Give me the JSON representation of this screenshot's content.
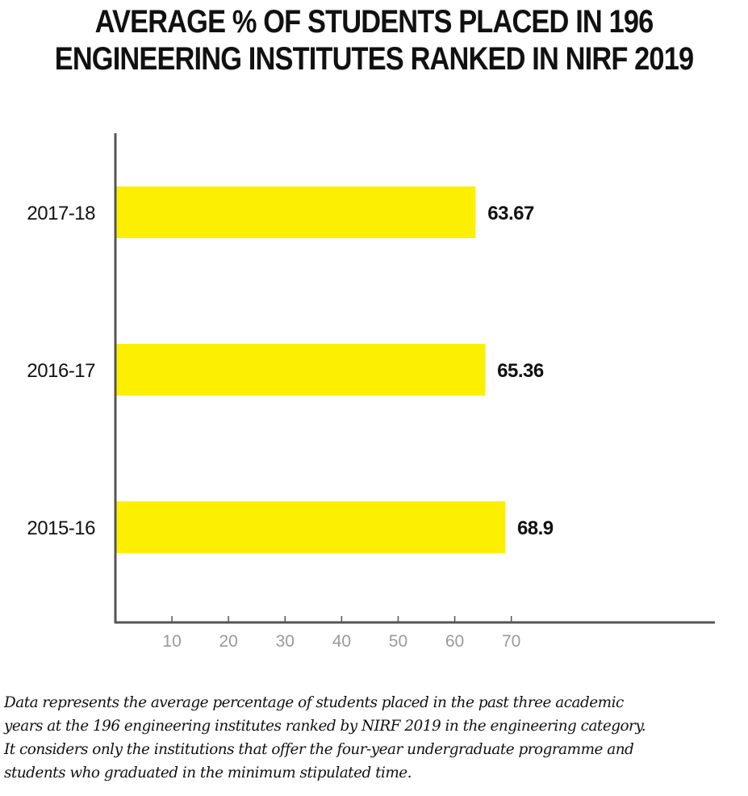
{
  "title": {
    "line1": "AVERAGE % OF STUDENTS PLACED IN 196",
    "line2": "ENGINEERING INSTITUTES RANKED IN NIRF 2019"
  },
  "chart_data": {
    "type": "bar",
    "orientation": "horizontal",
    "title": "AVERAGE % OF STUDENTS PLACED IN 196 ENGINEERING INSTITUTES RANKED IN NIRF 2019",
    "categories": [
      "2017-18",
      "2016-17",
      "2015-16"
    ],
    "values": [
      63.67,
      65.36,
      68.9
    ],
    "value_labels": [
      "63.67",
      "65.36",
      "68.9"
    ],
    "xticks": [
      "10",
      "20",
      "30",
      "40",
      "50",
      "60",
      "70"
    ],
    "xlim": [
      0,
      106
    ],
    "xlabel": "",
    "ylabel": "",
    "grid": false,
    "legend": "none",
    "bar_color": "#FCEF00",
    "axis_color": "#555555",
    "tick_label_color": "#9a9a9a"
  },
  "footnote": {
    "line1": "Data represents the average percentage of students placed in the past three academic",
    "line2": "years at the 196 engineering institutes ranked by NIRF 2019 in the engineering category.",
    "line3": "It considers only the institutions that offer the four-year undergraduate programme and",
    "line4": "students who graduated in the minimum stipulated time."
  }
}
